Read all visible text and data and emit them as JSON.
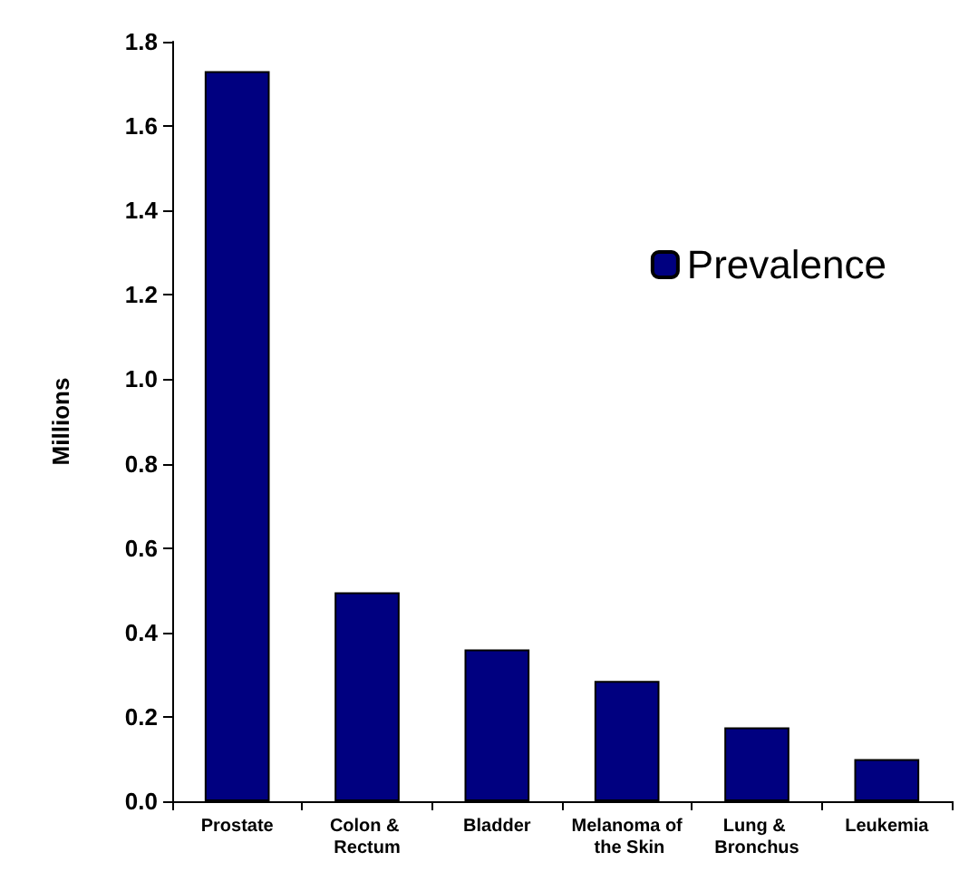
{
  "chart_data": {
    "type": "bar",
    "ylabel": "Millions",
    "categories": [
      "Prostate",
      "Colon & Rectum",
      "Bladder",
      "Melanoma of the Skin",
      "Lung & Bronchus",
      "Leukemia"
    ],
    "series": [
      {
        "name": "Prevalence",
        "color": "#000080",
        "values": [
          1.73,
          0.495,
          0.36,
          0.285,
          0.175,
          0.1
        ]
      }
    ],
    "ylim": [
      0,
      1.8
    ],
    "yticks": [
      {
        "value": 0,
        "label": "0.0"
      },
      {
        "value": 0.2,
        "label": "0.2"
      },
      {
        "value": 0.4,
        "label": "0.4"
      },
      {
        "value": 0.6,
        "label": "0.6"
      },
      {
        "value": 0.8,
        "label": "0.8"
      },
      {
        "value": 1,
        "label": "1.0"
      },
      {
        "value": 1.2,
        "label": "1.2"
      },
      {
        "value": 1.4,
        "label": "1.4"
      },
      {
        "value": 1.6,
        "label": "1.6"
      },
      {
        "value": 1.8,
        "label": "1.8"
      }
    ],
    "grid": false,
    "legend": "top right"
  }
}
